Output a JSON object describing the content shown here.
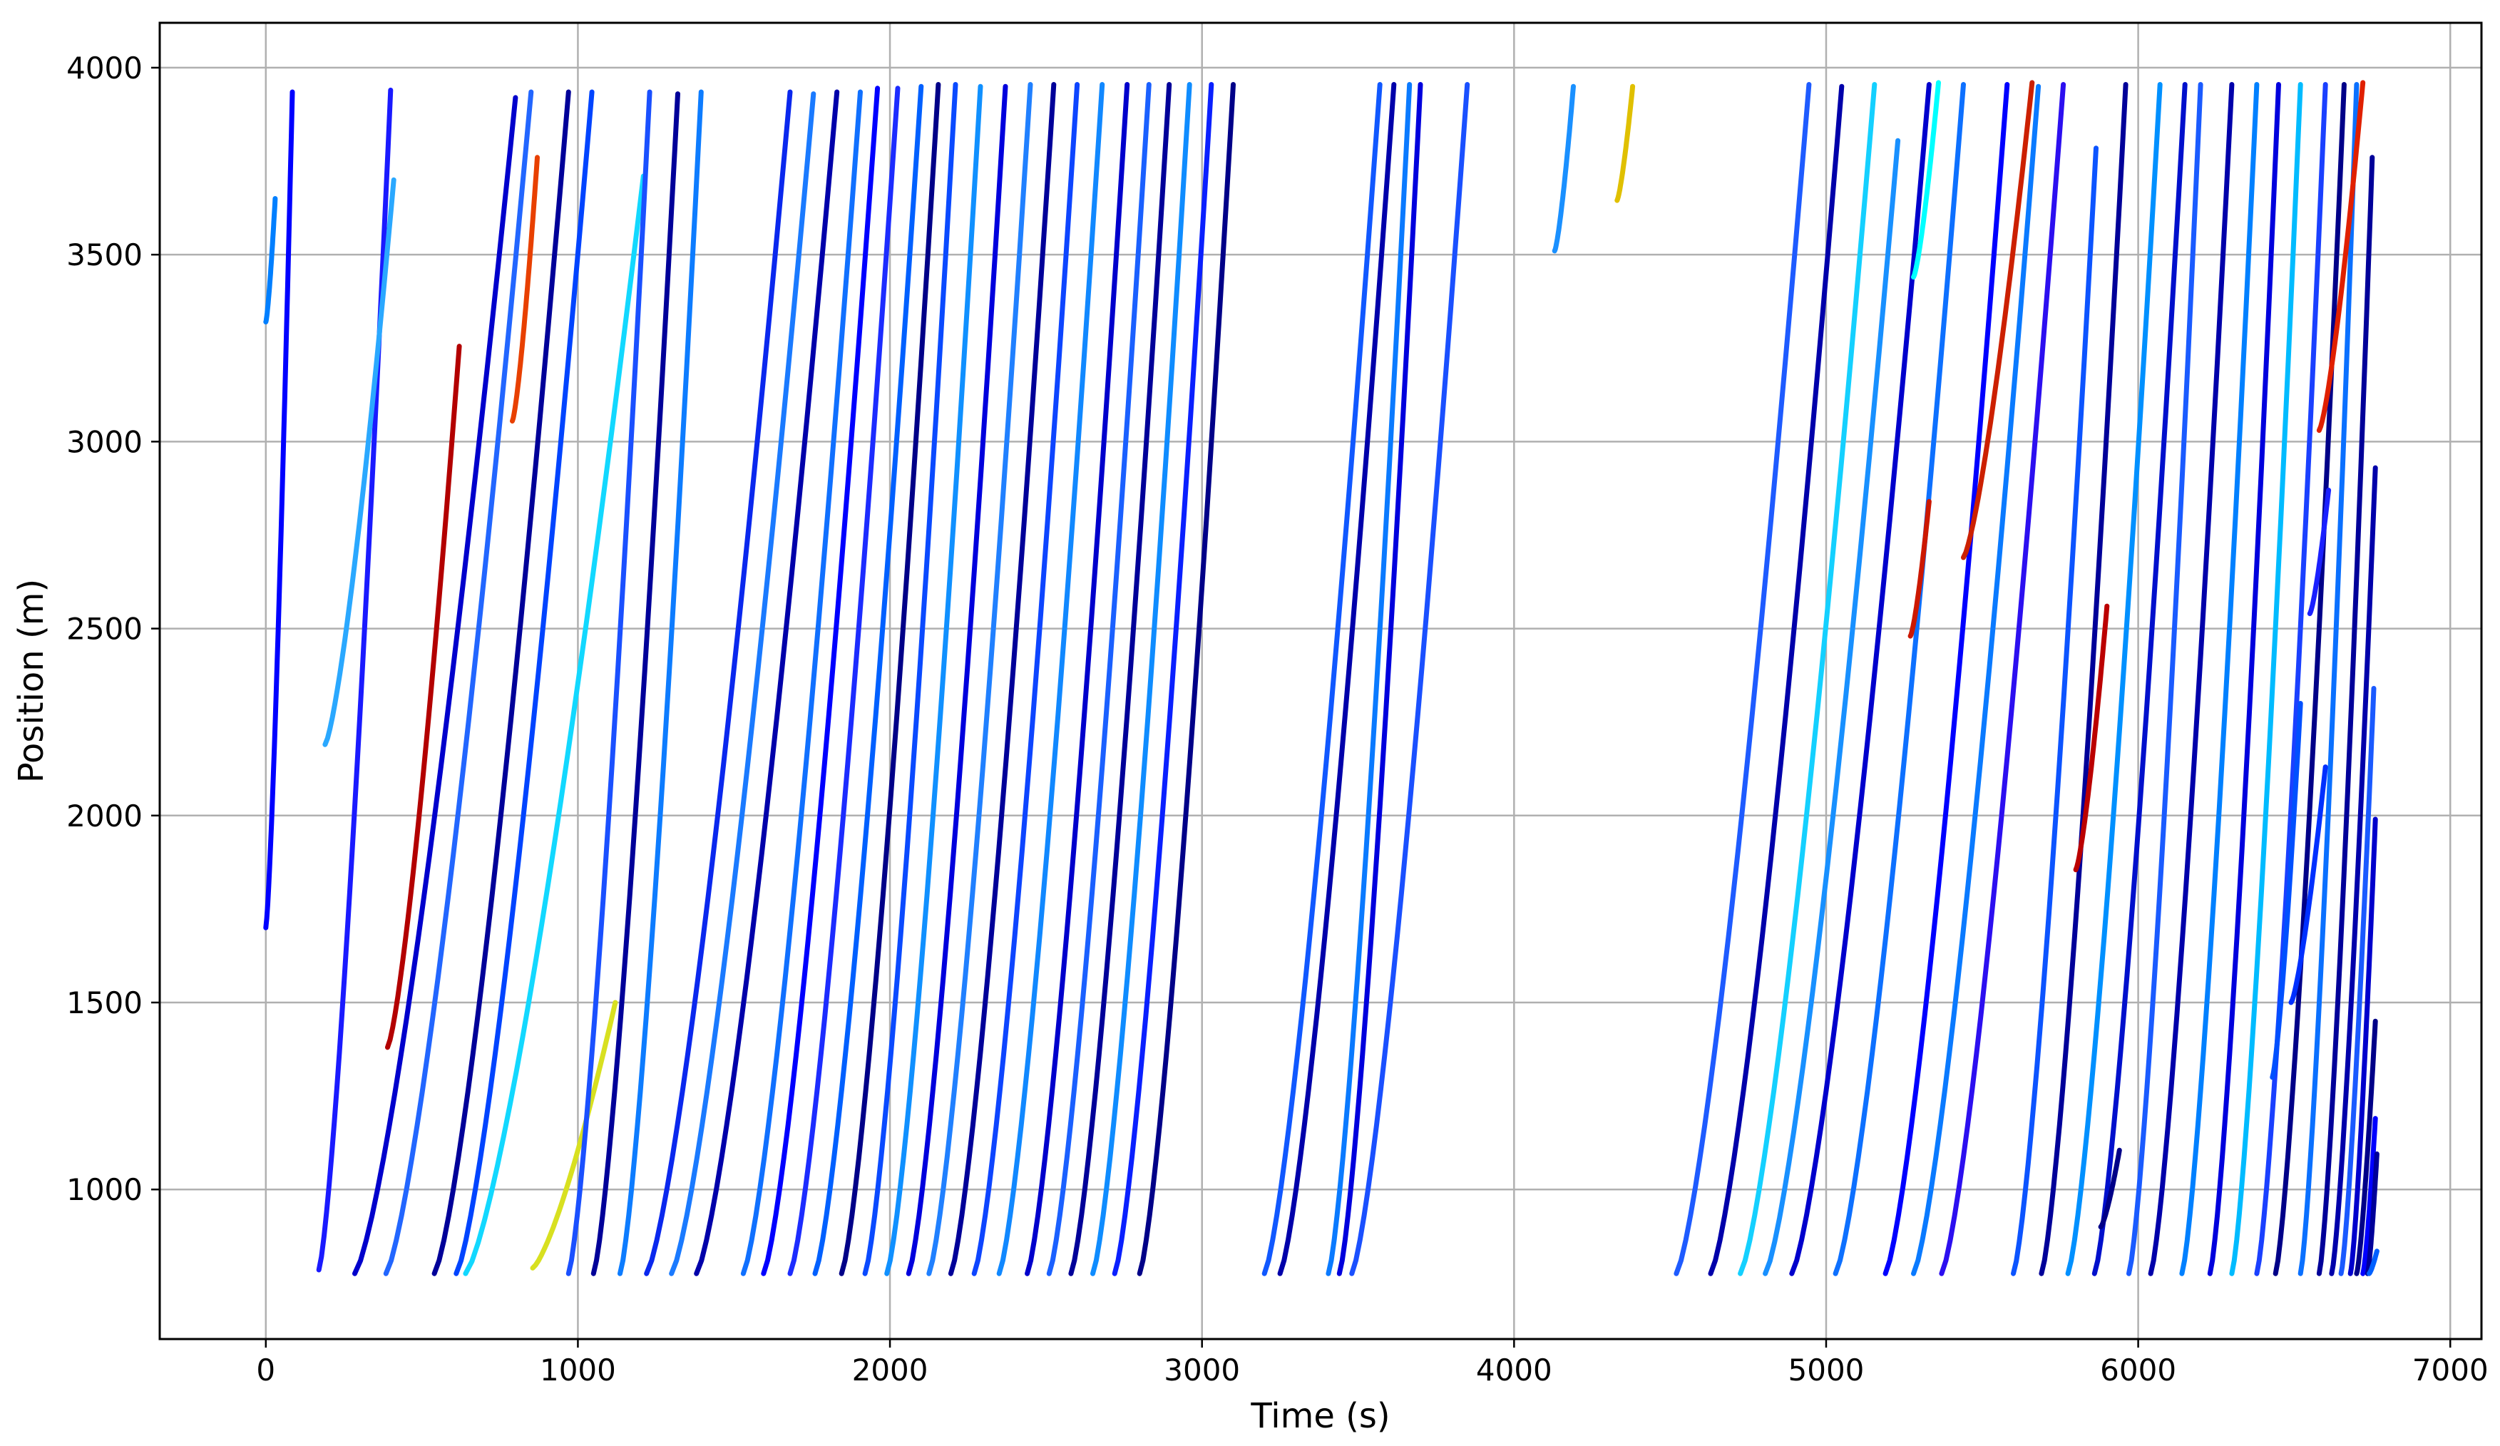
{
  "chart_data": {
    "type": "scatter",
    "title": "",
    "xlabel": "Time (s)",
    "ylabel": "Position (m)",
    "xlim": [
      -340,
      7100
    ],
    "ylim": [
      600,
      4120
    ],
    "xticks": [
      0,
      1000,
      2000,
      3000,
      4000,
      5000,
      6000,
      7000
    ],
    "yticks": [
      1000,
      1500,
      2000,
      2500,
      3000,
      3500,
      4000
    ],
    "grid": true,
    "legend": "none",
    "colormap": "jet",
    "colormap_stops": [
      "#00007f",
      "#0000ff",
      "#007fff",
      "#00ffff",
      "#7fff7f",
      "#ffff00",
      "#ff7f00",
      "#ff0000",
      "#7f0000"
    ],
    "series": [
      {
        "x": [
          0,
          85
        ],
        "y": [
          1700,
          3935
        ],
        "color": "#0000ff"
      },
      {
        "x": [
          0,
          30
        ],
        "y": [
          3320,
          3650
        ],
        "color": "#007fff"
      },
      {
        "x": [
          170,
          400
        ],
        "y": [
          785,
          3940
        ],
        "color": "#1a1aff"
      },
      {
        "x": [
          190,
          410
        ],
        "y": [
          2190,
          3700
        ],
        "color": "#2aa8ff"
      },
      {
        "x": [
          285,
          800
        ],
        "y": [
          775,
          3920
        ],
        "color": "#0000cc"
      },
      {
        "x": [
          385,
          850
        ],
        "y": [
          775,
          3935
        ],
        "color": "#2266ff"
      },
      {
        "x": [
          540,
          970
        ],
        "y": [
          775,
          3935
        ],
        "color": "#000099"
      },
      {
        "x": [
          610,
          1045
        ],
        "y": [
          775,
          3935
        ],
        "color": "#0044ff"
      },
      {
        "x": [
          640,
          1210
        ],
        "y": [
          775,
          3710
        ],
        "color": "#12d8ff"
      },
      {
        "x": [
          855,
          1120
        ],
        "y": [
          790,
          1500
        ],
        "color": "#d8e020"
      },
      {
        "x": [
          970,
          1230
        ],
        "y": [
          775,
          3935
        ],
        "color": "#1a50ff"
      },
      {
        "x": [
          1050,
          1320
        ],
        "y": [
          775,
          3930
        ],
        "color": "#000099"
      },
      {
        "x": [
          1135,
          1395
        ],
        "y": [
          775,
          3935
        ],
        "color": "#0d7cff"
      },
      {
        "x": [
          1220,
          1680
        ],
        "y": [
          775,
          3935
        ],
        "color": "#0a28ee"
      },
      {
        "x": [
          1300,
          1755
        ],
        "y": [
          775,
          3930
        ],
        "color": "#1a7aff"
      },
      {
        "x": [
          1380,
          1830
        ],
        "y": [
          775,
          3935
        ],
        "color": "#0000aa"
      },
      {
        "x": [
          1530,
          1905
        ],
        "y": [
          775,
          3935
        ],
        "color": "#1070ff"
      },
      {
        "x": [
          1595,
          1960
        ],
        "y": [
          775,
          3945
        ],
        "color": "#0000ff"
      },
      {
        "x": [
          1680,
          2025
        ],
        "y": [
          775,
          3945
        ],
        "color": "#1c2cff"
      },
      {
        "x": [
          1760,
          2100
        ],
        "y": [
          775,
          3950
        ],
        "color": "#0060ff"
      },
      {
        "x": [
          1845,
          2155
        ],
        "y": [
          775,
          3955
        ],
        "color": "#000088"
      },
      {
        "x": [
          1920,
          2210
        ],
        "y": [
          775,
          3955
        ],
        "color": "#0a4aff"
      },
      {
        "x": [
          1990,
          2290
        ],
        "y": [
          775,
          3950
        ],
        "color": "#1090ff"
      },
      {
        "x": [
          2060,
          2370
        ],
        "y": [
          775,
          3950
        ],
        "color": "#0000dd"
      },
      {
        "x": [
          2125,
          2450
        ],
        "y": [
          775,
          3955
        ],
        "color": "#2080ff"
      },
      {
        "x": [
          2195,
          2525
        ],
        "y": [
          775,
          3955
        ],
        "color": "#000099"
      },
      {
        "x": [
          2270,
          2600
        ],
        "y": [
          775,
          3955
        ],
        "color": "#0d45ff"
      },
      {
        "x": [
          2350,
          2680
        ],
        "y": [
          775,
          3955
        ],
        "color": "#1188ff"
      },
      {
        "x": [
          2440,
          2760
        ],
        "y": [
          775,
          3955
        ],
        "color": "#0000cc"
      },
      {
        "x": [
          2510,
          2830
        ],
        "y": [
          775,
          3955
        ],
        "color": "#1a60ff"
      },
      {
        "x": [
          2580,
          2895
        ],
        "y": [
          775,
          3955
        ],
        "color": "#000099"
      },
      {
        "x": [
          2650,
          2960
        ],
        "y": [
          775,
          3955
        ],
        "color": "#0f8cff"
      },
      {
        "x": [
          2720,
          3030
        ],
        "y": [
          775,
          3955
        ],
        "color": "#0a20ff"
      },
      {
        "x": [
          2800,
          3100
        ],
        "y": [
          775,
          3955
        ],
        "color": "#000088"
      },
      {
        "x": [
          3200,
          3570
        ],
        "y": [
          775,
          3955
        ],
        "color": "#1058ff"
      },
      {
        "x": [
          3250,
          3615
        ],
        "y": [
          775,
          3955
        ],
        "color": "#0000aa"
      },
      {
        "x": [
          3405,
          3665
        ],
        "y": [
          775,
          3955
        ],
        "color": "#0a7aff"
      },
      {
        "x": [
          3440,
          3700
        ],
        "y": [
          775,
          3955
        ],
        "color": "#0000dd"
      },
      {
        "x": [
          3480,
          3850
        ],
        "y": [
          775,
          3955
        ],
        "color": "#1a50ff"
      },
      {
        "x": [
          4520,
          4945
        ],
        "y": [
          775,
          3955
        ],
        "color": "#1e5bff"
      },
      {
        "x": [
          4630,
          5050
        ],
        "y": [
          775,
          3950
        ],
        "color": "#0000aa"
      },
      {
        "x": [
          4725,
          5155
        ],
        "y": [
          775,
          3955
        ],
        "color": "#14d0ff"
      },
      {
        "x": [
          4805,
          5230
        ],
        "y": [
          775,
          3805
        ],
        "color": "#1890ff"
      },
      {
        "x": [
          4890,
          5330
        ],
        "y": [
          775,
          3955
        ],
        "color": "#0000cc"
      },
      {
        "x": [
          5030,
          5440
        ],
        "y": [
          775,
          3955
        ],
        "color": "#0d70ff"
      },
      {
        "x": [
          5190,
          5580
        ],
        "y": [
          775,
          3955
        ],
        "color": "#0000ff"
      },
      {
        "x": [
          5280,
          5680
        ],
        "y": [
          775,
          3950
        ],
        "color": "#0a7aff"
      },
      {
        "x": [
          5370,
          5760
        ],
        "y": [
          775,
          3955
        ],
        "color": "#2c0ff0"
      },
      {
        "x": [
          5600,
          5865
        ],
        "y": [
          775,
          3785
        ],
        "color": "#0c54ff"
      },
      {
        "x": [
          5690,
          5960
        ],
        "y": [
          775,
          3955
        ],
        "color": "#000099"
      },
      {
        "x": [
          5775,
          6070
        ],
        "y": [
          775,
          3955
        ],
        "color": "#0090ff"
      },
      {
        "x": [
          5860,
          6150
        ],
        "y": [
          775,
          3955
        ],
        "color": "#0010cc"
      },
      {
        "x": [
          5970,
          6200
        ],
        "y": [
          775,
          3955
        ],
        "color": "#1a5bff"
      },
      {
        "x": [
          6040,
          6300
        ],
        "y": [
          775,
          3955
        ],
        "color": "#0000aa"
      },
      {
        "x": [
          6140,
          6380
        ],
        "y": [
          775,
          3955
        ],
        "color": "#0080ff"
      },
      {
        "x": [
          6230,
          6450
        ],
        "y": [
          775,
          3955
        ],
        "color": "#0000dd"
      },
      {
        "x": [
          6300,
          6520
        ],
        "y": [
          775,
          3955
        ],
        "color": "#00bbff"
      },
      {
        "x": [
          6380,
          6600
        ],
        "y": [
          775,
          3955
        ],
        "color": "#1a40ff"
      },
      {
        "x": [
          6440,
          6660
        ],
        "y": [
          775,
          3955
        ],
        "color": "#000088"
      },
      {
        "x": [
          6520,
          6700
        ],
        "y": [
          775,
          3955
        ],
        "color": "#0a70ff"
      },
      {
        "x": [
          6580,
          6750
        ],
        "y": [
          775,
          3760
        ],
        "color": "#000099"
      },
      {
        "x": [
          6620,
          6760
        ],
        "y": [
          775,
          2930
        ],
        "color": "#0000aa"
      },
      {
        "x": [
          6650,
          6755
        ],
        "y": [
          775,
          2340
        ],
        "color": "#1a5aff"
      },
      {
        "x": [
          6680,
          6760
        ],
        "y": [
          775,
          1990
        ],
        "color": "#0000cc"
      },
      {
        "x": [
          6700,
          6760
        ],
        "y": [
          775,
          1450
        ],
        "color": "#000088"
      },
      {
        "x": [
          6720,
          6760
        ],
        "y": [
          775,
          1190
        ],
        "color": "#0000ff"
      },
      {
        "x": [
          6735,
          6765
        ],
        "y": [
          775,
          1095
        ],
        "color": "#000099"
      },
      {
        "x": [
          6740,
          6765
        ],
        "y": [
          775,
          835
        ],
        "color": "#0060ff"
      },
      {
        "x": [
          390,
          620
        ],
        "y": [
          1380,
          3255
        ],
        "color": "#b30000"
      },
      {
        "x": [
          790,
          870
        ],
        "y": [
          3055,
          3760
        ],
        "color": "#e84000"
      },
      {
        "x": [
          4130,
          4190
        ],
        "y": [
          3510,
          3950
        ],
        "color": "#1a90ff"
      },
      {
        "x": [
          4330,
          4380
        ],
        "y": [
          3645,
          3950
        ],
        "color": "#e0c000"
      },
      {
        "x": [
          5270,
          5330
        ],
        "y": [
          2480,
          2840
        ],
        "color": "#cc1800"
      },
      {
        "x": [
          5440,
          5660
        ],
        "y": [
          2690,
          3960
        ],
        "color": "#cc2000"
      },
      {
        "x": [
          5800,
          5900
        ],
        "y": [
          1855,
          2560
        ],
        "color": "#bb0000"
      },
      {
        "x": [
          5280,
          5360
        ],
        "y": [
          3440,
          3960
        ],
        "color": "#00ffff"
      },
      {
        "x": [
          6580,
          6720
        ],
        "y": [
          3030,
          3960
        ],
        "color": "#e02000"
      },
      {
        "x": [
          6490,
          6600
        ],
        "y": [
          1500,
          2130
        ],
        "color": "#0030ff"
      },
      {
        "x": [
          6430,
          6520
        ],
        "y": [
          1300,
          2300
        ],
        "color": "#0050ff"
      },
      {
        "x": [
          6550,
          6610
        ],
        "y": [
          2540,
          2870
        ],
        "color": "#1a20ff"
      },
      {
        "x": [
          5880,
          5940
        ],
        "y": [
          900,
          1105
        ],
        "color": "#000088"
      }
    ]
  }
}
